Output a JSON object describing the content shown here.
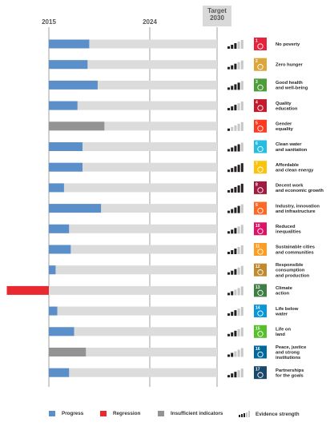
{
  "chart_data": {
    "type": "bar",
    "orientation": "horizontal",
    "title": "",
    "x_ticks": [
      "2015",
      "2024"
    ],
    "target_label": [
      "Target",
      "2030"
    ],
    "xlim": [
      0,
      100
    ],
    "goals": [
      {
        "number": 1,
        "name": [
          "No poverty"
        ],
        "color": "#e5243b",
        "progress": 24,
        "status": "progress",
        "evidence": 3
      },
      {
        "number": 2,
        "name": [
          "Zero hunger"
        ],
        "color": "#dda63a",
        "progress": 23,
        "status": "progress",
        "evidence": 3
      },
      {
        "number": 3,
        "name": [
          "Good health",
          "and well-being"
        ],
        "color": "#4c9f38",
        "progress": 29,
        "status": "progress",
        "evidence": 4
      },
      {
        "number": 4,
        "name": [
          "Quality",
          "education"
        ],
        "color": "#c5192d",
        "progress": 17,
        "status": "progress",
        "evidence": 3
      },
      {
        "number": 5,
        "name": [
          "Gender",
          "equality"
        ],
        "color": "#ff3a21",
        "progress": 33,
        "status": "insufficient",
        "evidence": 1
      },
      {
        "number": 6,
        "name": [
          "Clean water",
          "and sanitation"
        ],
        "color": "#26bde2",
        "progress": 20,
        "status": "progress",
        "evidence": 4
      },
      {
        "number": 7,
        "name": [
          "Affordable",
          "and clean energy"
        ],
        "color": "#fcc30b",
        "progress": 20,
        "status": "progress",
        "evidence": 5
      },
      {
        "number": 8,
        "name": [
          "Decent work",
          "and economic growth"
        ],
        "color": "#a21942",
        "progress": 9,
        "status": "progress",
        "evidence": 5
      },
      {
        "number": 9,
        "name": [
          "Industry, innovation",
          "and infrastructure"
        ],
        "color": "#fd6925",
        "progress": 31,
        "status": "progress",
        "evidence": 4
      },
      {
        "number": 10,
        "name": [
          "Reduced",
          "inequalities"
        ],
        "color": "#dd1367",
        "progress": 12,
        "status": "progress",
        "evidence": 3
      },
      {
        "number": 11,
        "name": [
          "Sustainable cities",
          "and communities"
        ],
        "color": "#fd9d24",
        "progress": 13,
        "status": "progress",
        "evidence": 3
      },
      {
        "number": 12,
        "name": [
          "Responsible",
          "consumption",
          "and production"
        ],
        "color": "#bf8b2e",
        "progress": 4,
        "status": "progress",
        "evidence": 3
      },
      {
        "number": 13,
        "name": [
          "Climate",
          "action"
        ],
        "color": "#3f7e44",
        "progress": -25,
        "status": "regression",
        "evidence": 2
      },
      {
        "number": 14,
        "name": [
          "Life below",
          "water"
        ],
        "color": "#0a97d9",
        "progress": 5,
        "status": "progress",
        "evidence": 3
      },
      {
        "number": 15,
        "name": [
          "Life on",
          "land"
        ],
        "color": "#56c02b",
        "progress": 15,
        "status": "progress",
        "evidence": 3
      },
      {
        "number": 16,
        "name": [
          "Peace, justice",
          "and strong",
          "institutions"
        ],
        "color": "#00689d",
        "progress": 22,
        "status": "insufficient",
        "evidence": 2
      },
      {
        "number": 17,
        "name": [
          "Partnerships",
          "for the goals"
        ],
        "color": "#19486a",
        "progress": 12,
        "status": "progress",
        "evidence": 3
      }
    ],
    "legend": [
      {
        "key": "progress",
        "label": "Progress",
        "color": "#5b8fc9"
      },
      {
        "key": "regression",
        "label": "Regression",
        "color": "#e8292f"
      },
      {
        "key": "insufficient",
        "label": "Insufficient indicators",
        "color": "#939393"
      },
      {
        "key": "evidence",
        "label": "Evidence strength",
        "color": "#231f20"
      }
    ],
    "colors": {
      "progress": "#5b8fc9",
      "regression": "#e8292f",
      "insufficient": "#939393",
      "track": "#dcdcdc",
      "evidence_on": "#231f20",
      "evidence_off": "#c7c7c7"
    }
  }
}
